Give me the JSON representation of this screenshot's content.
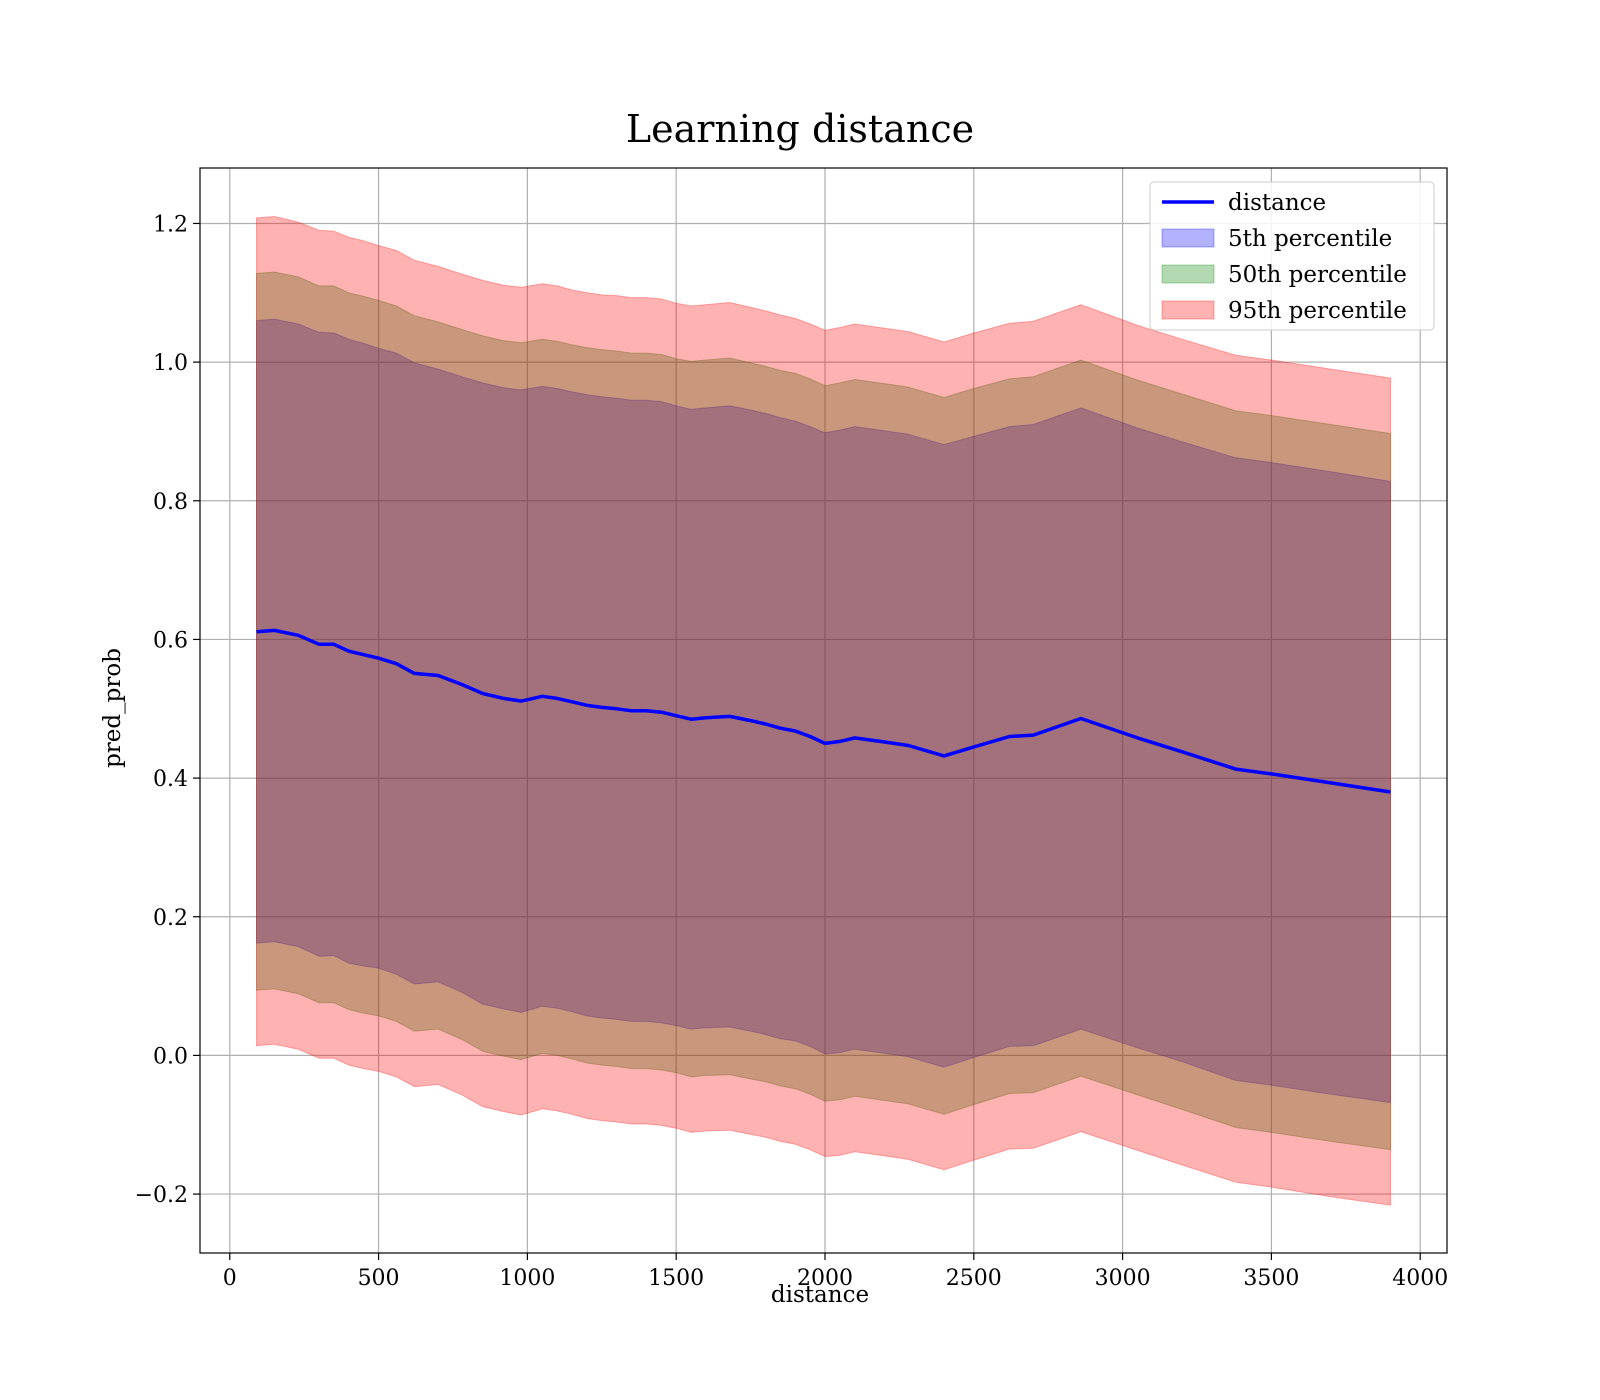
{
  "chart_data": {
    "type": "line",
    "title": "Learning distance",
    "xlabel": "distance",
    "ylabel": "pred_prob",
    "xlim": [
      -100,
      4090
    ],
    "ylim": [
      -0.285,
      1.28
    ],
    "xticks": [
      0,
      500,
      1000,
      1500,
      2000,
      2500,
      3000,
      3500,
      4000
    ],
    "xtick_labels": [
      "0",
      "500",
      "1000",
      "1500",
      "2000",
      "2500",
      "3000",
      "3500",
      "4000"
    ],
    "yticks": [
      -0.2,
      0.0,
      0.2,
      0.4,
      0.6,
      0.8,
      1.0,
      1.2
    ],
    "ytick_labels": [
      "−0.2",
      "0.0",
      "0.2",
      "0.4",
      "0.6",
      "0.8",
      "1.0",
      "1.2"
    ],
    "grid": true,
    "legend_position": "top-right",
    "x": [
      90,
      150,
      230,
      300,
      350,
      400,
      450,
      500,
      560,
      620,
      700,
      780,
      850,
      920,
      980,
      1050,
      1100,
      1150,
      1200,
      1250,
      1300,
      1350,
      1400,
      1450,
      1500,
      1550,
      1600,
      1680,
      1750,
      1800,
      1850,
      1900,
      1950,
      2000,
      2050,
      2100,
      2200,
      2280,
      2400,
      2500,
      2620,
      2700,
      2860,
      3050,
      3200,
      3380,
      3500,
      3700,
      3900
    ],
    "series": [
      {
        "name": "distance",
        "kind": "line",
        "color": "#0000ff",
        "values": [
          0.611,
          0.613,
          0.606,
          0.593,
          0.593,
          0.583,
          0.578,
          0.573,
          0.565,
          0.551,
          0.548,
          0.535,
          0.522,
          0.515,
          0.511,
          0.518,
          0.515,
          0.51,
          0.505,
          0.502,
          0.5,
          0.497,
          0.497,
          0.495,
          0.49,
          0.485,
          0.487,
          0.489,
          0.483,
          0.478,
          0.472,
          0.468,
          0.46,
          0.45,
          0.453,
          0.458,
          0.452,
          0.447,
          0.432,
          0.445,
          0.46,
          0.462,
          0.486,
          0.458,
          0.438,
          0.413,
          0.406,
          0.393,
          0.38
        ]
      },
      {
        "name": "5th percentile",
        "kind": "band",
        "color": "#0000ff",
        "upper": [
          1.06,
          1.062,
          1.055,
          1.043,
          1.042,
          1.033,
          1.027,
          1.02,
          1.013,
          0.999,
          0.99,
          0.979,
          0.97,
          0.963,
          0.96,
          0.965,
          0.962,
          0.957,
          0.953,
          0.95,
          0.948,
          0.945,
          0.945,
          0.943,
          0.937,
          0.932,
          0.934,
          0.937,
          0.931,
          0.926,
          0.92,
          0.915,
          0.907,
          0.898,
          0.902,
          0.907,
          0.901,
          0.896,
          0.881,
          0.893,
          0.907,
          0.91,
          0.934,
          0.905,
          0.885,
          0.862,
          0.855,
          0.842,
          0.828
        ],
        "lower": [
          0.162,
          0.164,
          0.157,
          0.143,
          0.144,
          0.133,
          0.129,
          0.126,
          0.117,
          0.103,
          0.106,
          0.091,
          0.074,
          0.067,
          0.062,
          0.071,
          0.068,
          0.063,
          0.057,
          0.054,
          0.052,
          0.049,
          0.049,
          0.047,
          0.043,
          0.038,
          0.04,
          0.041,
          0.035,
          0.03,
          0.024,
          0.021,
          0.013,
          0.002,
          0.004,
          0.009,
          0.003,
          -0.002,
          -0.017,
          -0.003,
          0.013,
          0.014,
          0.038,
          0.011,
          -0.009,
          -0.036,
          -0.043,
          -0.056,
          -0.068
        ]
      },
      {
        "name": "50th percentile",
        "kind": "band",
        "color": "#008000",
        "upper": [
          1.128,
          1.13,
          1.123,
          1.11,
          1.11,
          1.1,
          1.095,
          1.089,
          1.081,
          1.067,
          1.058,
          1.047,
          1.038,
          1.031,
          1.028,
          1.033,
          1.03,
          1.025,
          1.021,
          1.018,
          1.016,
          1.013,
          1.013,
          1.011,
          1.005,
          1.001,
          1.003,
          1.006,
          0.999,
          0.994,
          0.988,
          0.984,
          0.976,
          0.966,
          0.97,
          0.975,
          0.969,
          0.964,
          0.949,
          0.962,
          0.976,
          0.979,
          1.003,
          0.974,
          0.954,
          0.93,
          0.923,
          0.91,
          0.897
        ],
        "lower": [
          0.094,
          0.096,
          0.089,
          0.076,
          0.076,
          0.066,
          0.061,
          0.057,
          0.049,
          0.035,
          0.038,
          0.023,
          0.006,
          -0.001,
          -0.006,
          0.003,
          0.0,
          -0.005,
          -0.011,
          -0.014,
          -0.016,
          -0.019,
          -0.019,
          -0.021,
          -0.025,
          -0.031,
          -0.029,
          -0.028,
          -0.034,
          -0.038,
          -0.044,
          -0.048,
          -0.056,
          -0.066,
          -0.064,
          -0.059,
          -0.065,
          -0.07,
          -0.085,
          -0.071,
          -0.055,
          -0.054,
          -0.03,
          -0.057,
          -0.078,
          -0.104,
          -0.111,
          -0.124,
          -0.136
        ]
      },
      {
        "name": "95th percentile",
        "kind": "band",
        "color": "#ff0000",
        "upper": [
          1.208,
          1.21,
          1.202,
          1.19,
          1.189,
          1.18,
          1.175,
          1.168,
          1.161,
          1.147,
          1.138,
          1.127,
          1.118,
          1.111,
          1.108,
          1.113,
          1.11,
          1.104,
          1.1,
          1.097,
          1.096,
          1.093,
          1.093,
          1.091,
          1.085,
          1.081,
          1.083,
          1.086,
          1.079,
          1.074,
          1.068,
          1.063,
          1.055,
          1.046,
          1.05,
          1.055,
          1.049,
          1.044,
          1.029,
          1.042,
          1.056,
          1.059,
          1.083,
          1.053,
          1.033,
          1.01,
          1.003,
          0.99,
          0.977
        ],
        "lower": [
          0.014,
          0.016,
          0.009,
          -0.004,
          -0.004,
          -0.014,
          -0.019,
          -0.023,
          -0.031,
          -0.045,
          -0.042,
          -0.057,
          -0.074,
          -0.081,
          -0.086,
          -0.077,
          -0.08,
          -0.085,
          -0.091,
          -0.094,
          -0.096,
          -0.099,
          -0.099,
          -0.101,
          -0.105,
          -0.111,
          -0.109,
          -0.108,
          -0.114,
          -0.118,
          -0.124,
          -0.128,
          -0.136,
          -0.146,
          -0.144,
          -0.139,
          -0.145,
          -0.15,
          -0.165,
          -0.151,
          -0.135,
          -0.134,
          -0.11,
          -0.137,
          -0.158,
          -0.183,
          -0.19,
          -0.204,
          -0.216
        ]
      }
    ]
  }
}
